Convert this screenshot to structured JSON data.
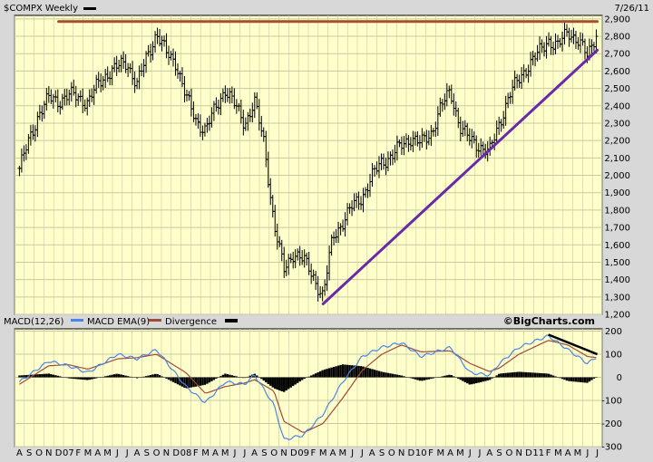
{
  "header": {
    "symbol": "$COMPX Weekly",
    "date": "7/26/11"
  },
  "macd_header": {
    "macd_label": "MACD(12,26)",
    "ema_label": "MACD EMA(9)",
    "divergence_label": "Divergence"
  },
  "watermark": "©BigCharts.com",
  "colors": {
    "background": "#d8d8d8",
    "plot_bg": "#ffffcc",
    "grid": "#c9c9a2",
    "price_bars": "#000000",
    "resistance_line": "#a0522d",
    "trend_line": "#6a2aa8",
    "macd_line": "#4a86e8",
    "ema_line": "#a04a3a",
    "divergence": "#000000"
  },
  "chart_data": [
    {
      "type": "ohlc",
      "title": "$COMPX Weekly",
      "frequency": "weekly",
      "y_ticks": [
        1200,
        1300,
        1400,
        1500,
        1600,
        1700,
        1800,
        1900,
        2000,
        2100,
        2200,
        2300,
        2400,
        2500,
        2600,
        2700,
        2800,
        2900
      ],
      "y_tick_labels": [
        "1,200",
        "1,300",
        "1,400",
        "1,500",
        "1,600",
        "1,700",
        "1,800",
        "1,900",
        "2,000",
        "2,100",
        "2,200",
        "2,300",
        "2,400",
        "2,500",
        "2,600",
        "2,700",
        "2,800",
        "2,900"
      ],
      "ylim": [
        1200,
        2920
      ],
      "x_range": [
        "2006-08",
        "2011-07"
      ],
      "x_tick_labels": [
        "A",
        "S",
        "O",
        "N",
        "D",
        "07",
        "F",
        "M",
        "A",
        "M",
        "J",
        "J",
        "A",
        "S",
        "O",
        "N",
        "D",
        "08",
        "F",
        "M",
        "A",
        "M",
        "J",
        "J",
        "A",
        "S",
        "O",
        "N",
        "D",
        "09",
        "F",
        "M",
        "A",
        "M",
        "J",
        "J",
        "A",
        "S",
        "O",
        "N",
        "D",
        "10",
        "F",
        "M",
        "A",
        "M",
        "J",
        "J",
        "A",
        "S",
        "O",
        "N",
        "D",
        "11",
        "F",
        "M",
        "A",
        "M",
        "J",
        "J"
      ],
      "approx_close_path": [
        {
          "x": "2006-08",
          "y": 2040
        },
        {
          "x": "2006-09",
          "y": 2200
        },
        {
          "x": "2006-10",
          "y": 2360
        },
        {
          "x": "2006-11",
          "y": 2440
        },
        {
          "x": "2006-12",
          "y": 2430
        },
        {
          "x": "2007-01",
          "y": 2460
        },
        {
          "x": "2007-02",
          "y": 2450
        },
        {
          "x": "2007-03",
          "y": 2420
        },
        {
          "x": "2007-04",
          "y": 2520
        },
        {
          "x": "2007-05",
          "y": 2590
        },
        {
          "x": "2007-06",
          "y": 2620
        },
        {
          "x": "2007-07",
          "y": 2650
        },
        {
          "x": "2007-08",
          "y": 2520
        },
        {
          "x": "2007-09",
          "y": 2680
        },
        {
          "x": "2007-10",
          "y": 2820
        },
        {
          "x": "2007-11",
          "y": 2700
        },
        {
          "x": "2007-12",
          "y": 2650
        },
        {
          "x": "2008-01",
          "y": 2450
        },
        {
          "x": "2008-02",
          "y": 2320
        },
        {
          "x": "2008-03",
          "y": 2260
        },
        {
          "x": "2008-04",
          "y": 2380
        },
        {
          "x": "2008-05",
          "y": 2500
        },
        {
          "x": "2008-06",
          "y": 2400
        },
        {
          "x": "2008-07",
          "y": 2300
        },
        {
          "x": "2008-08",
          "y": 2420
        },
        {
          "x": "2008-09",
          "y": 2180
        },
        {
          "x": "2008-10",
          "y": 1720
        },
        {
          "x": "2008-11",
          "y": 1450
        },
        {
          "x": "2008-12",
          "y": 1560
        },
        {
          "x": "2009-01",
          "y": 1510
        },
        {
          "x": "2009-02",
          "y": 1420
        },
        {
          "x": "2009-03",
          "y": 1300
        },
        {
          "x": "2009-04",
          "y": 1650
        },
        {
          "x": "2009-05",
          "y": 1730
        },
        {
          "x": "2009-06",
          "y": 1820
        },
        {
          "x": "2009-07",
          "y": 1880
        },
        {
          "x": "2009-08",
          "y": 1990
        },
        {
          "x": "2009-09",
          "y": 2080
        },
        {
          "x": "2009-10",
          "y": 2110
        },
        {
          "x": "2009-11",
          "y": 2170
        },
        {
          "x": "2009-12",
          "y": 2220
        },
        {
          "x": "2010-01",
          "y": 2180
        },
        {
          "x": "2010-02",
          "y": 2240
        },
        {
          "x": "2010-03",
          "y": 2390
        },
        {
          "x": "2010-04",
          "y": 2480
        },
        {
          "x": "2010-05",
          "y": 2280
        },
        {
          "x": "2010-06",
          "y": 2200
        },
        {
          "x": "2010-07",
          "y": 2170
        },
        {
          "x": "2010-08",
          "y": 2130
        },
        {
          "x": "2010-09",
          "y": 2300
        },
        {
          "x": "2010-10",
          "y": 2460
        },
        {
          "x": "2010-11",
          "y": 2550
        },
        {
          "x": "2010-12",
          "y": 2640
        },
        {
          "x": "2011-01",
          "y": 2700
        },
        {
          "x": "2011-02",
          "y": 2780
        },
        {
          "x": "2011-03",
          "y": 2740
        },
        {
          "x": "2011-04",
          "y": 2830
        },
        {
          "x": "2011-05",
          "y": 2780
        },
        {
          "x": "2011-06",
          "y": 2680
        },
        {
          "x": "2011-07",
          "y": 2840
        }
      ],
      "lines": [
        {
          "name": "resistance",
          "from": {
            "x": "2006-12",
            "y": 2885
          },
          "to": {
            "x": "2011-07",
            "y": 2885
          }
        },
        {
          "name": "trendline",
          "from": {
            "x": "2009-03",
            "y": 1260
          },
          "to": {
            "x": "2011-07",
            "y": 2720
          }
        }
      ]
    },
    {
      "type": "line",
      "title": "MACD(12,26)",
      "y_ticks": [
        -300,
        -200,
        -100,
        0,
        100,
        200
      ],
      "y_tick_labels": [
        "-300",
        "-200",
        "-100",
        "0",
        "100",
        "200"
      ],
      "ylim": [
        -300,
        210
      ],
      "series": [
        {
          "name": "MACD(12,26)",
          "points": [
            {
              "x": "2006-08",
              "y": -20
            },
            {
              "x": "2006-11",
              "y": 70
            },
            {
              "x": "2007-01",
              "y": 50
            },
            {
              "x": "2007-03",
              "y": 20
            },
            {
              "x": "2007-06",
              "y": 100
            },
            {
              "x": "2007-08",
              "y": 80
            },
            {
              "x": "2007-10",
              "y": 120
            },
            {
              "x": "2008-01",
              "y": -40
            },
            {
              "x": "2008-03",
              "y": -110
            },
            {
              "x": "2008-05",
              "y": -20
            },
            {
              "x": "2008-07",
              "y": -30
            },
            {
              "x": "2008-08",
              "y": 10
            },
            {
              "x": "2008-10",
              "y": -120
            },
            {
              "x": "2008-11",
              "y": -270
            },
            {
              "x": "2009-01",
              "y": -250
            },
            {
              "x": "2009-03",
              "y": -160
            },
            {
              "x": "2009-05",
              "y": -20
            },
            {
              "x": "2009-07",
              "y": 90
            },
            {
              "x": "2009-09",
              "y": 130
            },
            {
              "x": "2009-11",
              "y": 150
            },
            {
              "x": "2010-01",
              "y": 90
            },
            {
              "x": "2010-04",
              "y": 130
            },
            {
              "x": "2010-06",
              "y": 20
            },
            {
              "x": "2010-08",
              "y": 10
            },
            {
              "x": "2010-09",
              "y": 60
            },
            {
              "x": "2010-11",
              "y": 130
            },
            {
              "x": "2011-02",
              "y": 180
            },
            {
              "x": "2011-04",
              "y": 120
            },
            {
              "x": "2011-06",
              "y": 60
            },
            {
              "x": "2011-07",
              "y": 90
            }
          ]
        },
        {
          "name": "MACD EMA(9)",
          "points": [
            {
              "x": "2006-08",
              "y": -30
            },
            {
              "x": "2006-11",
              "y": 50
            },
            {
              "x": "2007-01",
              "y": 55
            },
            {
              "x": "2007-03",
              "y": 35
            },
            {
              "x": "2007-06",
              "y": 80
            },
            {
              "x": "2007-08",
              "y": 85
            },
            {
              "x": "2007-10",
              "y": 100
            },
            {
              "x": "2008-01",
              "y": 20
            },
            {
              "x": "2008-03",
              "y": -70
            },
            {
              "x": "2008-05",
              "y": -40
            },
            {
              "x": "2008-07",
              "y": -25
            },
            {
              "x": "2008-08",
              "y": -10
            },
            {
              "x": "2008-10",
              "y": -60
            },
            {
              "x": "2008-11",
              "y": -190
            },
            {
              "x": "2009-01",
              "y": -240
            },
            {
              "x": "2009-03",
              "y": -200
            },
            {
              "x": "2009-05",
              "y": -90
            },
            {
              "x": "2009-07",
              "y": 30
            },
            {
              "x": "2009-09",
              "y": 100
            },
            {
              "x": "2009-11",
              "y": 140
            },
            {
              "x": "2010-01",
              "y": 110
            },
            {
              "x": "2010-04",
              "y": 115
            },
            {
              "x": "2010-06",
              "y": 60
            },
            {
              "x": "2010-08",
              "y": 25
            },
            {
              "x": "2010-09",
              "y": 40
            },
            {
              "x": "2010-11",
              "y": 100
            },
            {
              "x": "2011-02",
              "y": 160
            },
            {
              "x": "2011-04",
              "y": 140
            },
            {
              "x": "2011-06",
              "y": 90
            },
            {
              "x": "2011-07",
              "y": 85
            }
          ]
        }
      ],
      "divergence_line": {
        "from": {
          "x": "2011-02",
          "y": 185
        },
        "to": {
          "x": "2011-07",
          "y": 100
        }
      }
    }
  ]
}
